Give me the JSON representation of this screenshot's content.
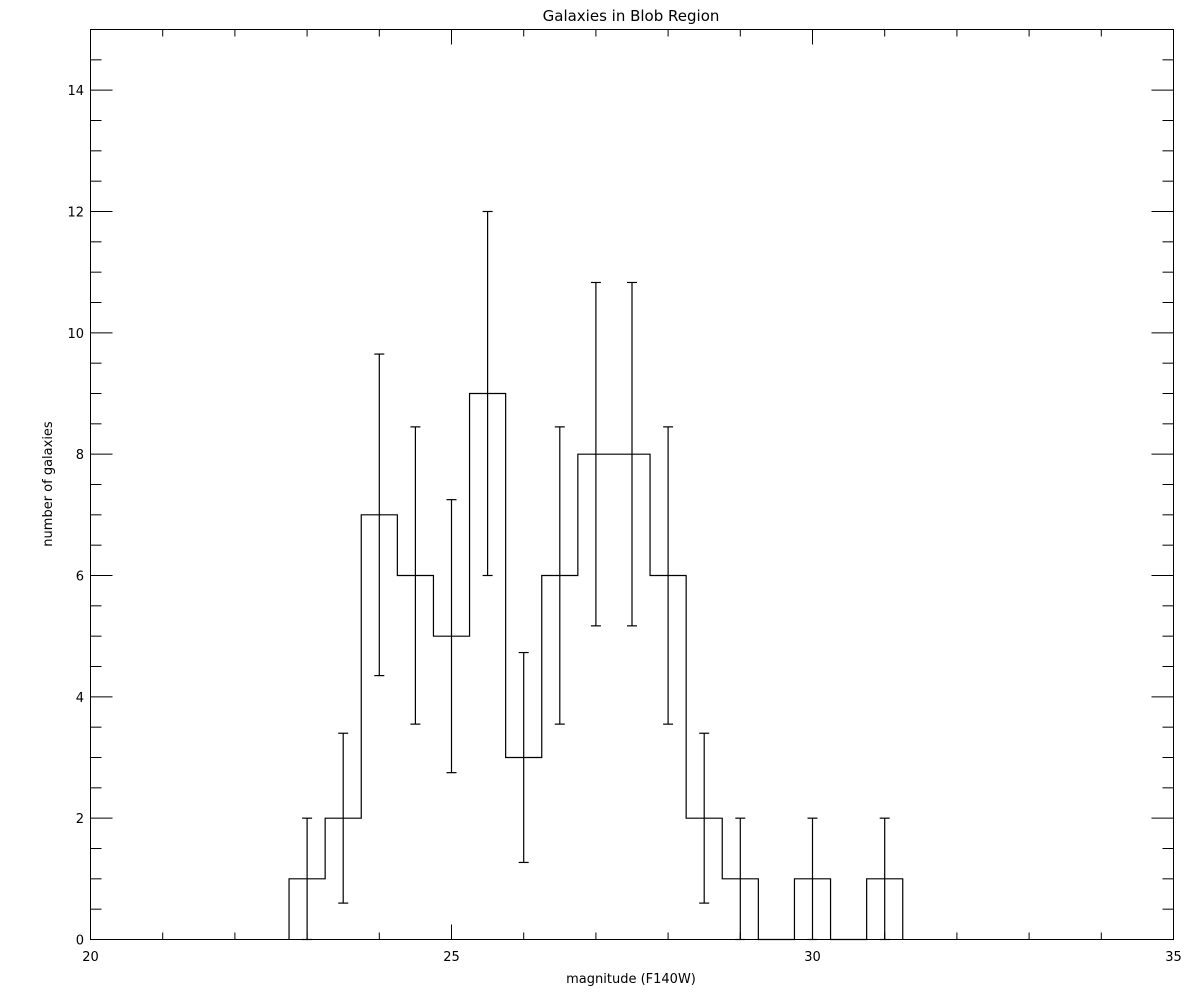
{
  "chart_data": {
    "type": "histogram",
    "title": "Galaxies in Blob Region",
    "xlabel": "magnitude (F140W)",
    "ylabel": "number of galaxies",
    "xlim": [
      20,
      35
    ],
    "ylim": [
      0,
      15
    ],
    "x_ticks": [
      20,
      25,
      30,
      35
    ],
    "y_ticks": [
      0,
      2,
      4,
      6,
      8,
      10,
      12,
      14
    ],
    "grid": false,
    "bin_width": 0.5,
    "bins": [
      {
        "x": 23.0,
        "y": 1,
        "err_low": 0,
        "err_high": 2
      },
      {
        "x": 23.5,
        "y": 2,
        "err_low": 0.6,
        "err_high": 3.4
      },
      {
        "x": 24.0,
        "y": 7,
        "err_low": 4.35,
        "err_high": 9.65
      },
      {
        "x": 24.5,
        "y": 6,
        "err_low": 3.55,
        "err_high": 8.45
      },
      {
        "x": 25.0,
        "y": 5,
        "err_low": 2.75,
        "err_high": 7.25
      },
      {
        "x": 25.5,
        "y": 9,
        "err_low": 6,
        "err_high": 12
      },
      {
        "x": 26.0,
        "y": 3,
        "err_low": 1.27,
        "err_high": 4.73
      },
      {
        "x": 26.5,
        "y": 6,
        "err_low": 3.55,
        "err_high": 8.45
      },
      {
        "x": 27.0,
        "y": 8,
        "err_low": 5.17,
        "err_high": 10.83
      },
      {
        "x": 27.5,
        "y": 8,
        "err_low": 5.17,
        "err_high": 10.83
      },
      {
        "x": 28.0,
        "y": 6,
        "err_low": 3.55,
        "err_high": 8.45
      },
      {
        "x": 28.5,
        "y": 2,
        "err_low": 0.6,
        "err_high": 3.4
      },
      {
        "x": 29.0,
        "y": 1,
        "err_low": 0,
        "err_high": 2
      },
      {
        "x": 29.5,
        "y": 0
      },
      {
        "x": 30.0,
        "y": 1,
        "err_low": 0,
        "err_high": 2
      },
      {
        "x": 30.5,
        "y": 0
      },
      {
        "x": 31.0,
        "y": 1,
        "err_low": 0,
        "err_high": 2
      }
    ]
  }
}
